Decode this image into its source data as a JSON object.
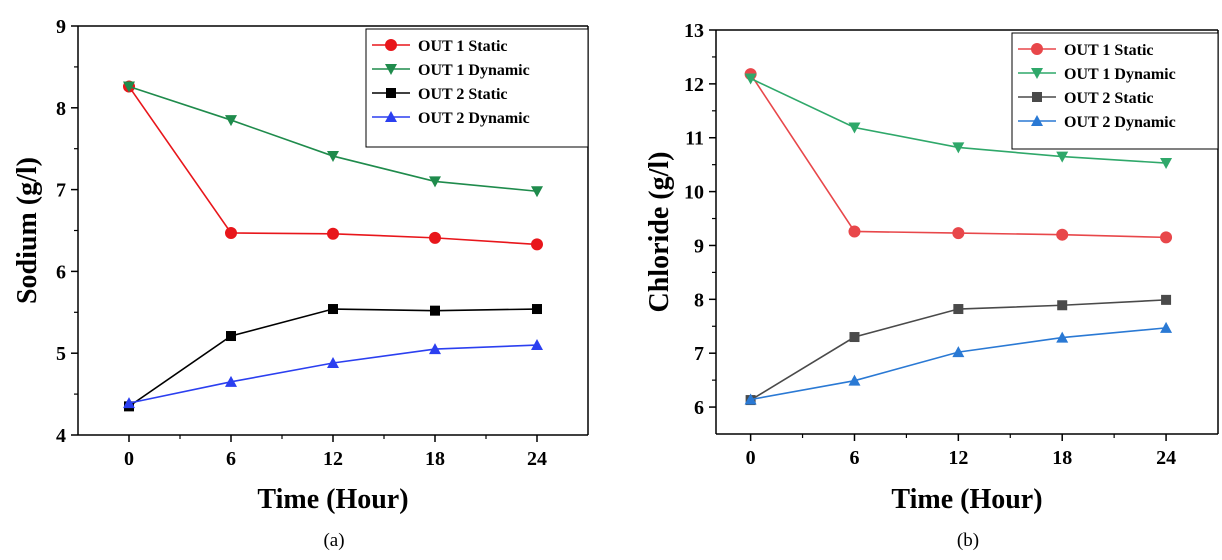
{
  "chart_data": [
    {
      "type": "line",
      "caption": "(a)",
      "xlabel": "Time (Hour)",
      "ylabel": "Sodium (g/l)",
      "x_ticks": [
        "0",
        "6",
        "12",
        "18",
        "24"
      ],
      "y_ticks": [
        "4",
        "5",
        "6",
        "7",
        "8",
        "9"
      ],
      "xlim": [
        -3,
        27
      ],
      "ylim": [
        4,
        9
      ],
      "legend_position": "top-right",
      "series": [
        {
          "name": "OUT 1 Static",
          "color": "#e8161b",
          "marker": "circle",
          "x": [
            0,
            6,
            12,
            18,
            24
          ],
          "y": [
            8.26,
            6.47,
            6.46,
            6.41,
            6.33
          ]
        },
        {
          "name": "OUT 1 Dynamic",
          "color": "#1f8b4c",
          "marker": "triangle-down",
          "x": [
            0,
            6,
            12,
            18,
            24
          ],
          "y": [
            8.26,
            7.85,
            7.41,
            7.1,
            6.98
          ]
        },
        {
          "name": "OUT 2 Static",
          "color": "#000000",
          "marker": "square",
          "x": [
            0,
            6,
            12,
            18,
            24
          ],
          "y": [
            4.35,
            5.21,
            5.54,
            5.52,
            5.54
          ]
        },
        {
          "name": "OUT 2 Dynamic",
          "color": "#2b3ff0",
          "marker": "triangle-up",
          "x": [
            0,
            6,
            12,
            18,
            24
          ],
          "y": [
            4.39,
            4.65,
            4.88,
            5.05,
            5.1
          ]
        }
      ]
    },
    {
      "type": "line",
      "caption": "(b)",
      "xlabel": "Time (Hour)",
      "ylabel": "Chloride (g/l)",
      "x_ticks": [
        "0",
        "6",
        "12",
        "18",
        "24"
      ],
      "y_ticks": [
        "6",
        "7",
        "8",
        "9",
        "10",
        "11",
        "12",
        "13"
      ],
      "xlim": [
        -2,
        27
      ],
      "ylim": [
        5.5,
        13
      ],
      "legend_position": "top-right",
      "series": [
        {
          "name": "OUT 1 Static",
          "color": "#e8474a",
          "marker": "circle",
          "x": [
            0,
            6,
            12,
            18,
            24
          ],
          "y": [
            12.18,
            9.26,
            9.23,
            9.2,
            9.15
          ]
        },
        {
          "name": "OUT 1 Dynamic",
          "color": "#2fa86a",
          "marker": "triangle-down",
          "x": [
            0,
            6,
            12,
            18,
            24
          ],
          "y": [
            12.1,
            11.19,
            10.82,
            10.65,
            10.53
          ]
        },
        {
          "name": "OUT 2 Static",
          "color": "#4a4a4a",
          "marker": "square",
          "x": [
            0,
            6,
            12,
            18,
            24
          ],
          "y": [
            6.13,
            7.3,
            7.82,
            7.89,
            7.99
          ]
        },
        {
          "name": "OUT 2 Dynamic",
          "color": "#2a79d4",
          "marker": "triangle-up",
          "x": [
            0,
            6,
            12,
            18,
            24
          ],
          "y": [
            6.14,
            6.49,
            7.02,
            7.29,
            7.47
          ]
        }
      ]
    }
  ]
}
